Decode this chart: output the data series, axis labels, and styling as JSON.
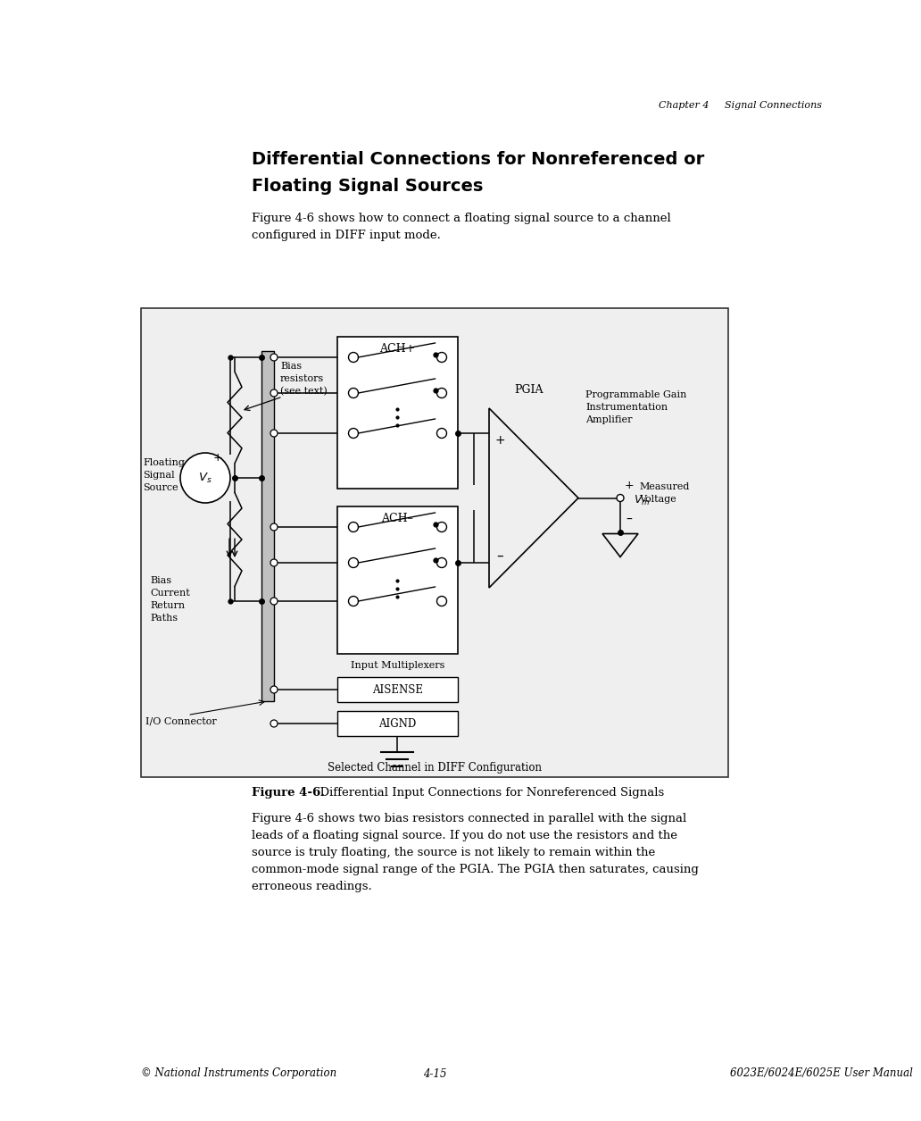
{
  "page_header": "Chapter 4     Signal Connections",
  "title_line1": "Differential Connections for Nonreferenced or",
  "title_line2": "Floating Signal Sources",
  "intro_text": "Figure 4-6 shows how to connect a floating signal source to a channel\nconfigured in DIFF input mode.",
  "figure_caption_bold": "Figure 4-6.",
  "figure_caption_rest": "  Differential Input Connections for Nonreferenced Signals",
  "body_text": "Figure 4-6 shows two bias resistors connected in parallel with the signal\nleads of a floating signal source. If you do not use the resistors and the\nsource is truly floating, the source is not likely to remain within the\ncommon-mode signal range of the PGIA. The PGIA then saturates, causing\nerroneous readings.",
  "footer_left": "© National Instruments Corporation",
  "footer_center": "4-15",
  "footer_right": "6023E/6024E/6025E User Manual",
  "diagram_bottom_label": "Selected Channel in DIFF Configuration",
  "bg_color": "#ffffff",
  "diagram_bg": "#f5f5f5"
}
